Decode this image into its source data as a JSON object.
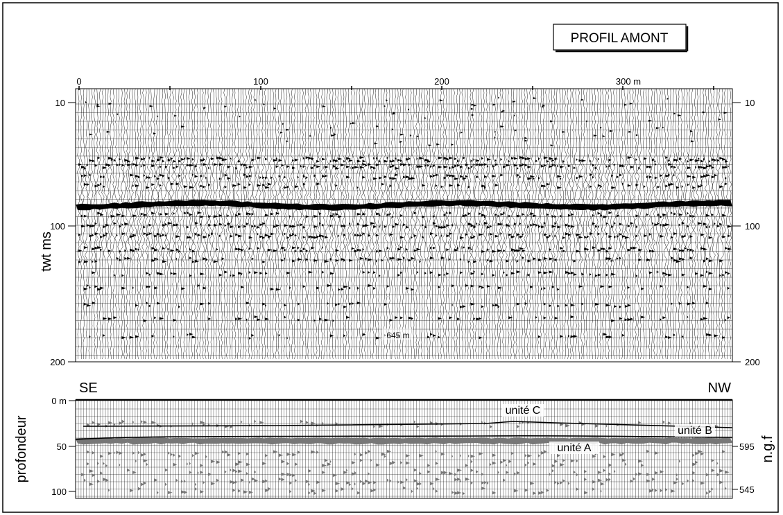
{
  "figure": {
    "title": "PROFIL AMONT",
    "top_panel": {
      "x_ticks": [
        "0",
        "100",
        "200",
        "300 m"
      ],
      "y_ticks_left": [
        "10",
        "100",
        "200"
      ],
      "y_ticks_right": [
        "10",
        "100",
        "200"
      ],
      "y_label": "twt ms",
      "annotation": "645 m"
    },
    "bottom_panel": {
      "left_orientation": "SE",
      "right_orientation": "NW",
      "y_ticks_left": [
        "0 m",
        "50",
        "100"
      ],
      "y_ticks_right": [
        "595",
        "545"
      ],
      "y_label_left": "profondeur",
      "y_label_right": "n.g.f",
      "units": [
        "unité C",
        "unité B",
        "unité A"
      ]
    }
  },
  "chart_data": [
    {
      "type": "seismic_section",
      "title": "PROFIL AMONT",
      "xlabel": "",
      "x_ticks": [
        "0",
        "100",
        "200",
        "300 m"
      ],
      "xlim": [
        0,
        360
      ],
      "ylabel": "twt ms",
      "y_ticks": [
        10,
        100,
        200
      ],
      "ylim": [
        0,
        200
      ],
      "annotation": "645 m"
    },
    {
      "type": "interpreted_section",
      "ylabel": "profondeur",
      "y2label": "n.g.f",
      "y_ticks": [
        "0 m",
        "50",
        "100"
      ],
      "y2_ticks": [
        "595",
        "545"
      ],
      "units": [
        "unité C",
        "unité B",
        "unité A"
      ],
      "orientation": [
        "SE",
        "NW"
      ]
    }
  ]
}
